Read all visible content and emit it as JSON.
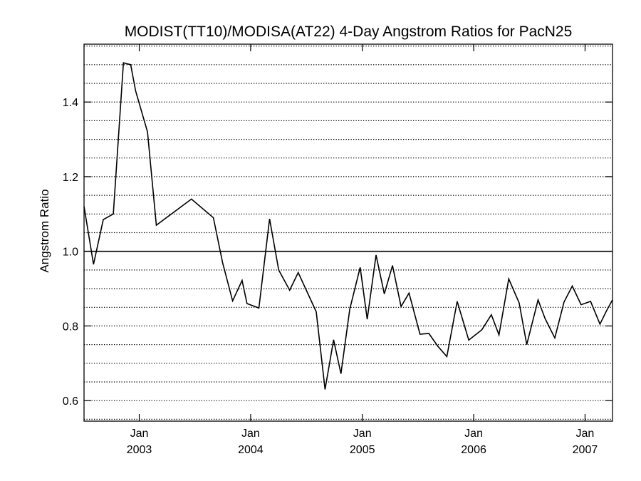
{
  "chart_data": {
    "type": "line",
    "title": "MODIST(TT10)/MODISA(AT22) 4-Day Angstrom Ratios for PacN25",
    "xlabel": "",
    "ylabel": "Angstrom Ratio",
    "xlim": [
      "2002-07-04",
      "2007-04-01"
    ],
    "ylim": [
      0.545,
      1.555
    ],
    "grid": true,
    "grid_style": "dotted",
    "reference_line": 1.0,
    "line_color": "#000000",
    "y_ticks": [
      {
        "value": 0.6,
        "label": "0.6"
      },
      {
        "value": 0.8,
        "label": "0.8"
      },
      {
        "value": 1.0,
        "label": "1.0"
      },
      {
        "value": 1.2,
        "label": "1.2"
      },
      {
        "value": 1.4,
        "label": "1.4"
      }
    ],
    "x_ticks": [
      {
        "date": "2003-01-01",
        "month": "Jan",
        "year": "2003"
      },
      {
        "date": "2004-01-01",
        "month": "Jan",
        "year": "2004"
      },
      {
        "date": "2005-01-01",
        "month": "Jan",
        "year": "2005"
      },
      {
        "date": "2006-01-01",
        "month": "Jan",
        "year": "2006"
      },
      {
        "date": "2007-01-01",
        "month": "Jan",
        "year": "2007"
      }
    ],
    "series": [
      {
        "x": [
          "2002-07-04",
          "2002-08-04",
          "2002-09-05",
          "2002-10-08",
          "2002-11-10",
          "2002-12-04",
          "2002-12-20",
          "2003-01-28",
          "2003-02-26",
          "2003-06-21",
          "2003-09-01",
          "2003-10-01",
          "2003-11-03",
          "2003-12-04",
          "2003-12-20",
          "2004-01-28",
          "2004-03-03",
          "2004-04-02",
          "2004-05-08",
          "2004-06-05",
          "2004-08-03",
          "2004-09-01",
          "2004-09-29",
          "2004-10-23",
          "2004-11-21",
          "2004-12-25",
          "2005-01-17",
          "2005-02-15",
          "2005-03-14",
          "2005-04-10",
          "2005-05-08",
          "2005-06-03",
          "2005-07-09",
          "2005-08-07",
          "2005-09-06",
          "2005-10-05",
          "2005-11-08",
          "2005-12-16",
          "2006-01-28",
          "2006-02-28",
          "2006-03-25",
          "2006-04-26",
          "2006-05-30",
          "2006-06-24",
          "2006-07-31",
          "2006-08-23",
          "2006-09-24",
          "2006-10-24",
          "2006-11-20",
          "2006-12-19",
          "2007-01-19",
          "2007-02-19",
          "2007-03-12",
          "2007-04-01"
        ],
        "y": [
          1.12,
          0.965,
          1.085,
          1.1,
          1.505,
          1.5,
          1.43,
          1.32,
          1.07,
          1.14,
          1.09,
          0.97,
          0.867,
          0.922,
          0.86,
          0.848,
          1.087,
          0.95,
          0.896,
          0.943,
          0.838,
          0.63,
          0.763,
          0.672,
          0.845,
          0.957,
          0.818,
          0.99,
          0.886,
          0.962,
          0.852,
          0.888,
          0.778,
          0.78,
          0.745,
          0.718,
          0.866,
          0.762,
          0.79,
          0.83,
          0.776,
          0.926,
          0.862,
          0.75,
          0.87,
          0.82,
          0.768,
          0.864,
          0.907,
          0.857,
          0.866,
          0.805,
          0.84,
          0.87
        ]
      }
    ]
  }
}
